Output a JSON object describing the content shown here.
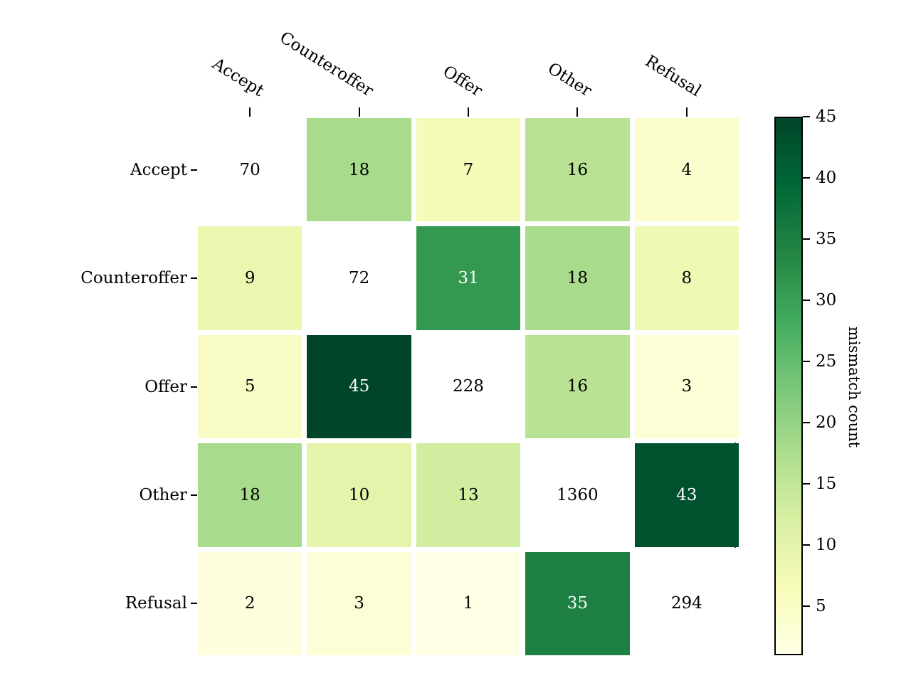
{
  "chart_data": {
    "type": "heatmap",
    "title": "",
    "x_categories": [
      "Accept",
      "Counteroffer",
      "Offer",
      "Other",
      "Refusal"
    ],
    "y_categories": [
      "Accept",
      "Counteroffer",
      "Offer",
      "Other",
      "Refusal"
    ],
    "matrix": [
      [
        70,
        18,
        7,
        16,
        4
      ],
      [
        9,
        72,
        31,
        18,
        8
      ],
      [
        5,
        45,
        228,
        16,
        3
      ],
      [
        18,
        10,
        13,
        1360,
        43
      ],
      [
        2,
        3,
        1,
        35,
        294
      ]
    ],
    "diagonal_masked": true,
    "masked_color": "#ffffff",
    "annotations_on": true,
    "grid": false,
    "colorbar": {
      "label": "mismatch count",
      "ticks": [
        5,
        10,
        15,
        20,
        25,
        30,
        35,
        40,
        45
      ],
      "vmin": 1,
      "vmax": 45,
      "colormap": "YlGn",
      "stops": [
        "#ffffe5",
        "#f7fcb9",
        "#d9f0a3",
        "#addd8e",
        "#78c679",
        "#41ab5d",
        "#238443",
        "#006837",
        "#004529"
      ],
      "position": "right"
    },
    "white_text_threshold": 29,
    "text_color_dark": "#000000",
    "text_color_light": "#ffffff"
  }
}
